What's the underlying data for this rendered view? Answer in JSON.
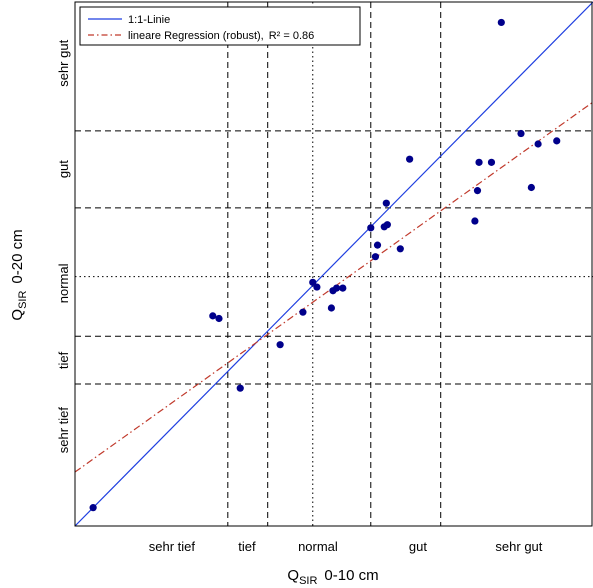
{
  "chart_data": {
    "type": "scatter",
    "x_axis": {
      "title_main": "Q",
      "title_sub": "SIR",
      "title_rest": "0-10 cm"
    },
    "y_axis": {
      "title_main": "Q",
      "title_sub": "SIR",
      "title_rest": "0-20 cm"
    },
    "xlim": [
      0,
      100
    ],
    "ylim": [
      0,
      100
    ],
    "x_class_bounds": [
      {
        "value": 29.5,
        "style": "dashed"
      },
      {
        "value": 37.2,
        "style": "dashed"
      },
      {
        "value": 45.9,
        "style": "dotted"
      },
      {
        "value": 57.1,
        "style": "dashed"
      },
      {
        "value": 70.6,
        "style": "dashed"
      }
    ],
    "y_class_bounds": [
      {
        "value": 27.1,
        "style": "dashed"
      },
      {
        "value": 36.2,
        "style": "dashed"
      },
      {
        "value": 47.6,
        "style": "dotted"
      },
      {
        "value": 60.7,
        "style": "dashed"
      },
      {
        "value": 75.4,
        "style": "dashed"
      }
    ],
    "x_class_labels": [
      {
        "label": "sehr tief",
        "pos": 18.7
      },
      {
        "label": "tief",
        "pos": 33.2
      },
      {
        "label": "normal",
        "pos": 46.9
      },
      {
        "label": "gut",
        "pos": 66.2
      },
      {
        "label": "sehr gut",
        "pos": 85.7
      }
    ],
    "y_class_labels": [
      {
        "label": "sehr tief",
        "pos": 18.3
      },
      {
        "label": "tief",
        "pos": 31.6
      },
      {
        "label": "normal",
        "pos": 46.3
      },
      {
        "label": "gut",
        "pos": 68.1
      },
      {
        "label": "sehr gut",
        "pos": 88.3
      }
    ],
    "series": [
      {
        "name": "1:1-Linie",
        "kind": "line",
        "color": "#1f3fe0",
        "style": "solid",
        "points": [
          [
            0,
            0
          ],
          [
            100,
            100
          ]
        ]
      },
      {
        "name": "lineare Regression (robust),",
        "name_suffix": "R² = 0.86",
        "kind": "line",
        "color": "#c0392b",
        "style": "dashdot",
        "points": [
          [
            0,
            10.3
          ],
          [
            100,
            80.9
          ]
        ]
      },
      {
        "name": "",
        "kind": "points",
        "color": "#00008b",
        "points": [
          [
            3.5,
            3.5
          ],
          [
            26.6,
            40.1
          ],
          [
            27.8,
            39.6
          ],
          [
            31.9,
            26.3
          ],
          [
            39.6,
            34.6
          ],
          [
            44.0,
            40.8
          ],
          [
            45.9,
            46.5
          ],
          [
            46.7,
            45.6
          ],
          [
            49.5,
            41.6
          ],
          [
            49.8,
            44.9
          ],
          [
            50.5,
            45.4
          ],
          [
            51.7,
            45.4
          ],
          [
            57.1,
            56.9
          ],
          [
            58.0,
            51.4
          ],
          [
            58.4,
            53.6
          ],
          [
            59.7,
            57.1
          ],
          [
            60.1,
            61.6
          ],
          [
            60.3,
            57.5
          ],
          [
            62.8,
            52.9
          ],
          [
            64.6,
            70.0
          ],
          [
            77.2,
            58.2
          ],
          [
            77.7,
            64.0
          ],
          [
            78.0,
            69.4
          ],
          [
            80.4,
            69.4
          ],
          [
            82.3,
            96.1
          ],
          [
            86.1,
            74.9
          ],
          [
            88.1,
            64.6
          ],
          [
            89.4,
            72.9
          ],
          [
            93.0,
            73.5
          ]
        ]
      }
    ],
    "legend_position": "top-left",
    "grid": false
  }
}
